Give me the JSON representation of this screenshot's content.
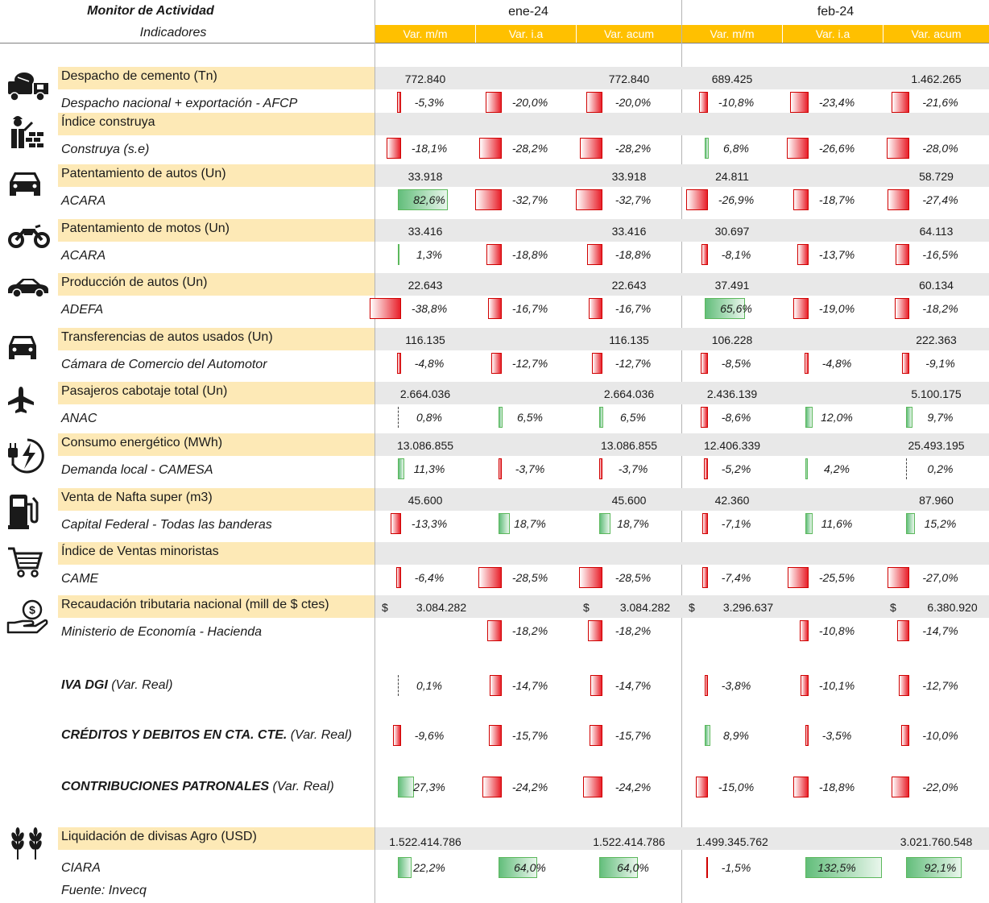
{
  "header": {
    "title": "Monitor de Actividad",
    "subtitle": "Indicadores",
    "months": [
      "ene-24",
      "feb-24"
    ],
    "columns": [
      "Var. m/m",
      "Var. i.a",
      "Var. acum",
      "Var. m/m",
      "Var. i.a",
      "Var. acum"
    ]
  },
  "colors": {
    "header_accent": "#ffc000",
    "label_band": "#fde9b6",
    "value_band": "#e8e8e8",
    "negative_bar": "#e8202a",
    "positive_bar": "#63be7b"
  },
  "rows": [
    {
      "icon": "cement-truck-icon",
      "label": "Despacho de cemento (Tn)",
      "source": "Despacho nacional + exportación - AFCP",
      "values": [
        "772.840",
        "",
        "772.840",
        "689.425",
        "",
        "1.462.265"
      ],
      "pcts": [
        "-5,3%",
        "-20,0%",
        "-20,0%",
        "-10,8%",
        "-23,4%",
        "-21,6%"
      ],
      "pnum": [
        -5.3,
        -20.0,
        -20.0,
        -10.8,
        -23.4,
        -21.6
      ]
    },
    {
      "icon": "construction-worker-icon",
      "label": "Índice construya",
      "source": "Construya (s.e)",
      "values": [
        "",
        "",
        "",
        "",
        "",
        ""
      ],
      "pcts": [
        "-18,1%",
        "-28,2%",
        "-28,2%",
        "6,8%",
        "-26,6%",
        "-28,0%"
      ],
      "pnum": [
        -18.1,
        -28.2,
        -28.2,
        6.8,
        -26.6,
        -28.0
      ]
    },
    {
      "icon": "car-icon",
      "label": "Patentamiento de autos (Un)",
      "source": "ACARA",
      "values": [
        "33.918",
        "",
        "33.918",
        "24.811",
        "",
        "58.729"
      ],
      "pcts": [
        "82,6%",
        "-32,7%",
        "-32,7%",
        "-26,9%",
        "-18,7%",
        "-27,4%"
      ],
      "pnum": [
        82.6,
        -32.7,
        -32.7,
        -26.9,
        -18.7,
        -27.4
      ]
    },
    {
      "icon": "motorcycle-icon",
      "label": "Patentamiento de motos (Un)",
      "source": "ACARA",
      "values": [
        "33.416",
        "",
        "33.416",
        "30.697",
        "",
        "64.113"
      ],
      "pcts": [
        "1,3%",
        "-18,8%",
        "-18,8%",
        "-8,1%",
        "-13,7%",
        "-16,5%"
      ],
      "pnum": [
        1.3,
        -18.8,
        -18.8,
        -8.1,
        -13.7,
        -16.5
      ]
    },
    {
      "icon": "sedan-icon",
      "label": "Producción de autos (Un)",
      "source": "ADEFA",
      "values": [
        "22.643",
        "",
        "22.643",
        "37.491",
        "",
        "60.134"
      ],
      "pcts": [
        "-38,8%",
        "-16,7%",
        "-16,7%",
        "65,6%",
        "-19,0%",
        "-18,2%"
      ],
      "pnum": [
        -38.8,
        -16.7,
        -16.7,
        65.6,
        -19.0,
        -18.2
      ]
    },
    {
      "icon": "used-car-icon",
      "label": "Transferencias de autos usados (Un)",
      "source": "Cámara de Comercio del Automotor",
      "values": [
        "116.135",
        "",
        "116.135",
        "106.228",
        "",
        "222.363"
      ],
      "pcts": [
        "-4,8%",
        "-12,7%",
        "-12,7%",
        "-8,5%",
        "-4,8%",
        "-9,1%"
      ],
      "pnum": [
        -4.8,
        -12.7,
        -12.7,
        -8.5,
        -4.8,
        -9.1
      ]
    },
    {
      "icon": "airplane-icon",
      "label": "Pasajeros cabotaje total (Un)",
      "source": "ANAC",
      "values": [
        "2.664.036",
        "",
        "2.664.036",
        "2.436.139",
        "",
        "5.100.175"
      ],
      "pcts": [
        "0,8%",
        "6,5%",
        "6,5%",
        "-8,6%",
        "12,0%",
        "9,7%"
      ],
      "pnum": [
        0.8,
        6.5,
        6.5,
        -8.6,
        12.0,
        9.7
      ]
    },
    {
      "icon": "energy-plug-icon",
      "label": "Consumo energético (MWh)",
      "source": "Demanda local - CAMESA",
      "values": [
        "13.086.855",
        "",
        "13.086.855",
        "12.406.339",
        "",
        "25.493.195"
      ],
      "pcts": [
        "11,3%",
        "-3,7%",
        "-3,7%",
        "-5,2%",
        "4,2%",
        "0,2%"
      ],
      "pnum": [
        11.3,
        -3.7,
        -3.7,
        -5.2,
        4.2,
        0.2
      ]
    },
    {
      "icon": "fuel-pump-icon",
      "label": "Venta de Nafta super (m3)",
      "source": "Capital Federal - Todas las banderas",
      "values": [
        "45.600",
        "",
        "45.600",
        "42.360",
        "",
        "87.960"
      ],
      "pcts": [
        "-13,3%",
        "18,7%",
        "18,7%",
        "-7,1%",
        "11,6%",
        "15,2%"
      ],
      "pnum": [
        -13.3,
        18.7,
        18.7,
        -7.1,
        11.6,
        15.2
      ]
    },
    {
      "icon": "shopping-cart-icon",
      "label": "Índice de Ventas minoristas",
      "source": "CAME",
      "values": [
        "",
        "",
        "",
        "",
        "",
        ""
      ],
      "pcts": [
        "-6,4%",
        "-28,5%",
        "-28,5%",
        "-7,4%",
        "-25,5%",
        "-27,0%"
      ],
      "pnum": [
        -6.4,
        -28.5,
        -28.5,
        -7.4,
        -25.5,
        -27.0
      ]
    },
    {
      "icon": "money-hand-icon",
      "label": "Recaudación tributaria nacional (mill de $ ctes)",
      "source": "Ministerio de Economía - Hacienda",
      "currency": "$",
      "values": [
        "3.084.282",
        "",
        "3.084.282",
        "3.296.637",
        "",
        "6.380.920"
      ],
      "pcts": [
        "",
        "-18,2%",
        "-18,2%",
        "",
        "-10,8%",
        "-14,7%"
      ],
      "pnum": [
        null,
        -18.2,
        -18.2,
        null,
        -10.8,
        -14.7
      ]
    }
  ],
  "tax_rows": [
    {
      "name": "IVA DGI",
      "note": "(Var. Real)",
      "pcts": [
        "0,1%",
        "-14,7%",
        "-14,7%",
        "-3,8%",
        "-10,1%",
        "-12,7%"
      ],
      "pnum": [
        0.1,
        -14.7,
        -14.7,
        -3.8,
        -10.1,
        -12.7
      ]
    },
    {
      "name": "CRÉDITOS Y DEBITOS EN CTA. CTE.",
      "note": "(Var. Real)",
      "pcts": [
        "-9,6%",
        "-15,7%",
        "-15,7%",
        "8,9%",
        "-3,5%",
        "-10,0%"
      ],
      "pnum": [
        -9.6,
        -15.7,
        -15.7,
        8.9,
        -3.5,
        -10.0
      ]
    },
    {
      "name": "CONTRIBUCIONES PATRONALES",
      "note": "(Var. Real)",
      "pcts": [
        "27,3%",
        "-24,2%",
        "-24,2%",
        "-15,0%",
        "-18,8%",
        "-22,0%"
      ],
      "pnum": [
        27.3,
        -24.2,
        -24.2,
        -15.0,
        -18.8,
        -22.0
      ]
    }
  ],
  "agro_row": {
    "icon": "wheat-icon",
    "label": "Liquidación de divisas Agro (USD)",
    "source": "CIARA",
    "values": [
      "1.522.414.786",
      "",
      "1.522.414.786",
      "1.499.345.762",
      "",
      "3.021.760.548"
    ],
    "pcts": [
      "22,2%",
      "64,0%",
      "64,0%",
      "-1,5%",
      "132,5%",
      "92,1%"
    ],
    "pnum": [
      22.2,
      64.0,
      64.0,
      -1.5,
      132.5,
      92.1
    ]
  },
  "footer": {
    "source": "Fuente: Invecq"
  }
}
